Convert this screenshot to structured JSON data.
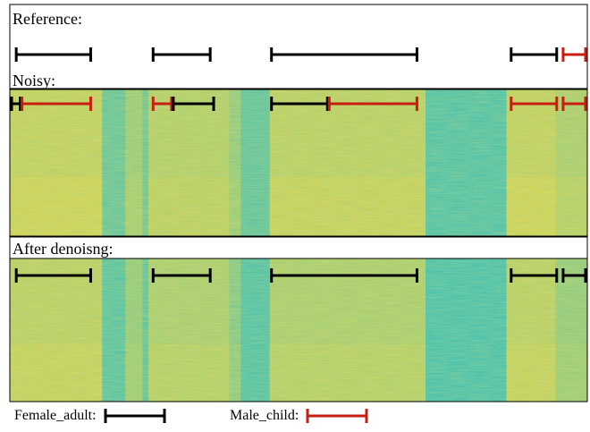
{
  "panels": {
    "reference": {
      "label": "Reference:"
    },
    "noisy": {
      "label": "Noisy:"
    },
    "denoised": {
      "label": "After denoisng:"
    }
  },
  "legend": {
    "female": {
      "label": "Female_adult:",
      "color": "#000000"
    },
    "male": {
      "label": "Male_child:",
      "color": "#c81e0f"
    }
  },
  "colors": {
    "female": "#000000",
    "male": "#c81e0f",
    "spectro_yellow": "#e8cf3a",
    "spectro_teal": "#2fb7b0",
    "spectro_green": "#8cbf5a"
  },
  "segments": {
    "reference": [
      {
        "speaker": "female",
        "start": 0.008,
        "end": 0.14
      },
      {
        "speaker": "female",
        "start": 0.245,
        "end": 0.347
      },
      {
        "speaker": "female",
        "start": 0.45,
        "end": 0.705
      },
      {
        "speaker": "female",
        "start": 0.865,
        "end": 0.947
      },
      {
        "speaker": "male",
        "start": 0.955,
        "end": 1.0
      }
    ],
    "noisy": [
      {
        "speaker": "female",
        "start": 0.0,
        "end": 0.018
      },
      {
        "speaker": "male",
        "start": 0.018,
        "end": 0.14
      },
      {
        "speaker": "male",
        "start": 0.245,
        "end": 0.28
      },
      {
        "speaker": "female",
        "start": 0.28,
        "end": 0.353
      },
      {
        "speaker": "female",
        "start": 0.45,
        "end": 0.55
      },
      {
        "speaker": "male",
        "start": 0.55,
        "end": 0.705
      },
      {
        "speaker": "male",
        "start": 0.865,
        "end": 0.947
      },
      {
        "speaker": "male",
        "start": 0.955,
        "end": 1.0
      }
    ],
    "denoised": [
      {
        "speaker": "female",
        "start": 0.008,
        "end": 0.14
      },
      {
        "speaker": "female",
        "start": 0.245,
        "end": 0.347
      },
      {
        "speaker": "female",
        "start": 0.45,
        "end": 0.705
      },
      {
        "speaker": "female",
        "start": 0.865,
        "end": 0.947
      },
      {
        "speaker": "female",
        "start": 0.955,
        "end": 1.0
      }
    ]
  },
  "spectrogram_regions": {
    "noisy": [
      {
        "start": 0.0,
        "end": 0.16,
        "level": 0.85
      },
      {
        "start": 0.16,
        "end": 0.2,
        "level": 0.25
      },
      {
        "start": 0.2,
        "end": 0.23,
        "level": 0.6
      },
      {
        "start": 0.23,
        "end": 0.24,
        "level": 0.3
      },
      {
        "start": 0.24,
        "end": 0.38,
        "level": 0.75
      },
      {
        "start": 0.38,
        "end": 0.4,
        "level": 0.55
      },
      {
        "start": 0.4,
        "end": 0.45,
        "level": 0.2
      },
      {
        "start": 0.45,
        "end": 0.72,
        "level": 0.8
      },
      {
        "start": 0.72,
        "end": 0.86,
        "level": 0.1
      },
      {
        "start": 0.86,
        "end": 0.945,
        "level": 0.85
      },
      {
        "start": 0.945,
        "end": 1.0,
        "level": 0.7
      }
    ],
    "denoised": [
      {
        "start": 0.0,
        "end": 0.16,
        "level": 0.8
      },
      {
        "start": 0.16,
        "end": 0.2,
        "level": 0.15
      },
      {
        "start": 0.2,
        "end": 0.23,
        "level": 0.55
      },
      {
        "start": 0.23,
        "end": 0.24,
        "level": 0.2
      },
      {
        "start": 0.24,
        "end": 0.38,
        "level": 0.7
      },
      {
        "start": 0.38,
        "end": 0.4,
        "level": 0.45
      },
      {
        "start": 0.4,
        "end": 0.45,
        "level": 0.1
      },
      {
        "start": 0.45,
        "end": 0.72,
        "level": 0.7
      },
      {
        "start": 0.72,
        "end": 0.86,
        "level": 0.05
      },
      {
        "start": 0.86,
        "end": 0.945,
        "level": 0.8
      },
      {
        "start": 0.945,
        "end": 1.0,
        "level": 0.55
      }
    ]
  }
}
